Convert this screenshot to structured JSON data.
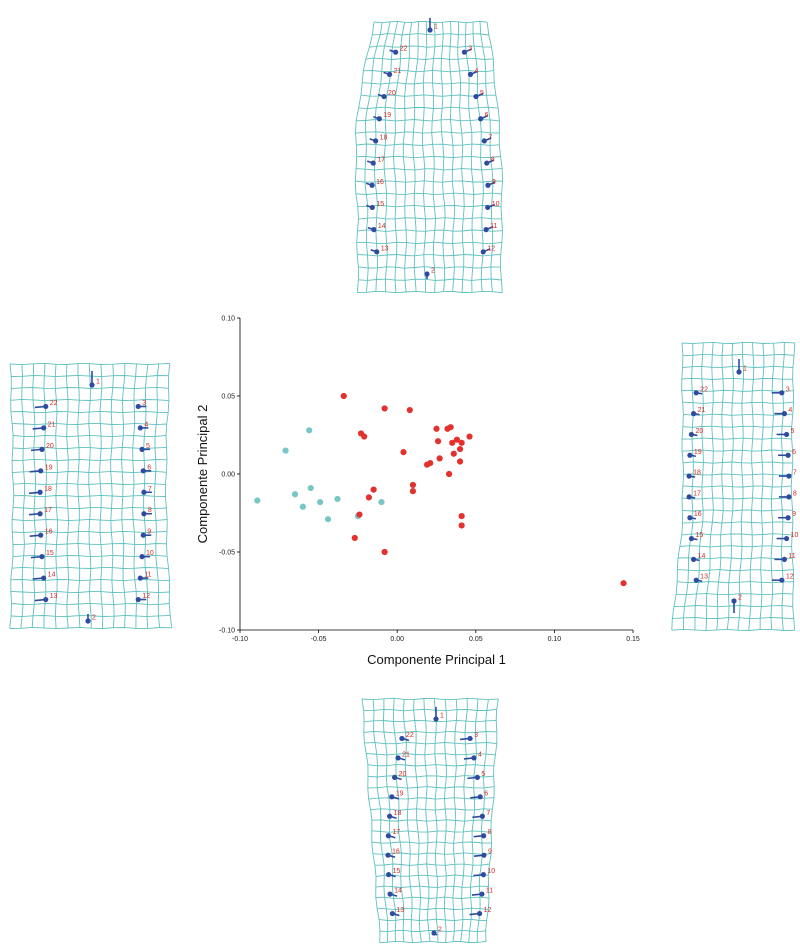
{
  "chart_data": {
    "type": "scatter",
    "xlabel": "Componente Principal 1",
    "ylabel": "Componente Principal 2",
    "xlim": [
      -0.1,
      0.15
    ],
    "ylim": [
      -0.1,
      0.1
    ],
    "x_ticks": [
      "-0.10",
      "-0.05",
      "0.00",
      "0.05",
      "0.10",
      "0.15"
    ],
    "y_ticks": [
      "-0.10",
      "-0.05",
      "0.00",
      "0.05",
      "0.10"
    ],
    "grid": false,
    "series": [
      {
        "color": "#79c6c7",
        "points": [
          [
            -0.089,
            -0.017
          ],
          [
            -0.071,
            0.015
          ],
          [
            -0.065,
            -0.013
          ],
          [
            -0.06,
            -0.021
          ],
          [
            -0.056,
            0.028
          ],
          [
            -0.055,
            -0.009
          ],
          [
            -0.049,
            -0.018
          ],
          [
            -0.044,
            -0.029
          ],
          [
            -0.038,
            -0.016
          ],
          [
            -0.025,
            -0.027
          ],
          [
            -0.01,
            -0.018
          ]
        ]
      },
      {
        "color": "#e3312e",
        "points": [
          [
            -0.034,
            0.05
          ],
          [
            -0.023,
            0.026
          ],
          [
            -0.021,
            0.024
          ],
          [
            -0.027,
            -0.041
          ],
          [
            -0.024,
            -0.026
          ],
          [
            -0.018,
            -0.015
          ],
          [
            -0.015,
            -0.01
          ],
          [
            -0.008,
            0.042
          ],
          [
            -0.008,
            -0.05
          ],
          [
            0.004,
            0.014
          ],
          [
            0.008,
            0.041
          ],
          [
            0.01,
            -0.007
          ],
          [
            0.01,
            -0.011
          ],
          [
            0.019,
            0.006
          ],
          [
            0.021,
            0.007
          ],
          [
            0.025,
            0.029
          ],
          [
            0.026,
            0.021
          ],
          [
            0.027,
            0.01
          ],
          [
            0.032,
            0.029
          ],
          [
            0.034,
            0.03
          ],
          [
            0.033,
            0.0
          ],
          [
            0.035,
            0.02
          ],
          [
            0.036,
            0.013
          ],
          [
            0.038,
            0.022
          ],
          [
            0.04,
            0.016
          ],
          [
            0.041,
            0.02
          ],
          [
            0.04,
            0.008
          ],
          [
            0.041,
            -0.027
          ],
          [
            0.041,
            -0.033
          ],
          [
            0.046,
            0.024
          ],
          [
            0.144,
            -0.07
          ]
        ]
      }
    ]
  },
  "landmark_labels": [
    "1",
    "2",
    "3",
    "4",
    "5",
    "6",
    "7",
    "8",
    "9",
    "10",
    "11",
    "12",
    "13",
    "14",
    "15",
    "16",
    "17",
    "18",
    "19",
    "20",
    "21",
    "22"
  ],
  "colors": {
    "grid": "#5fc1bf",
    "landmark": "#2f4ba0",
    "label": "#d42a2a",
    "axis": "#000000"
  }
}
